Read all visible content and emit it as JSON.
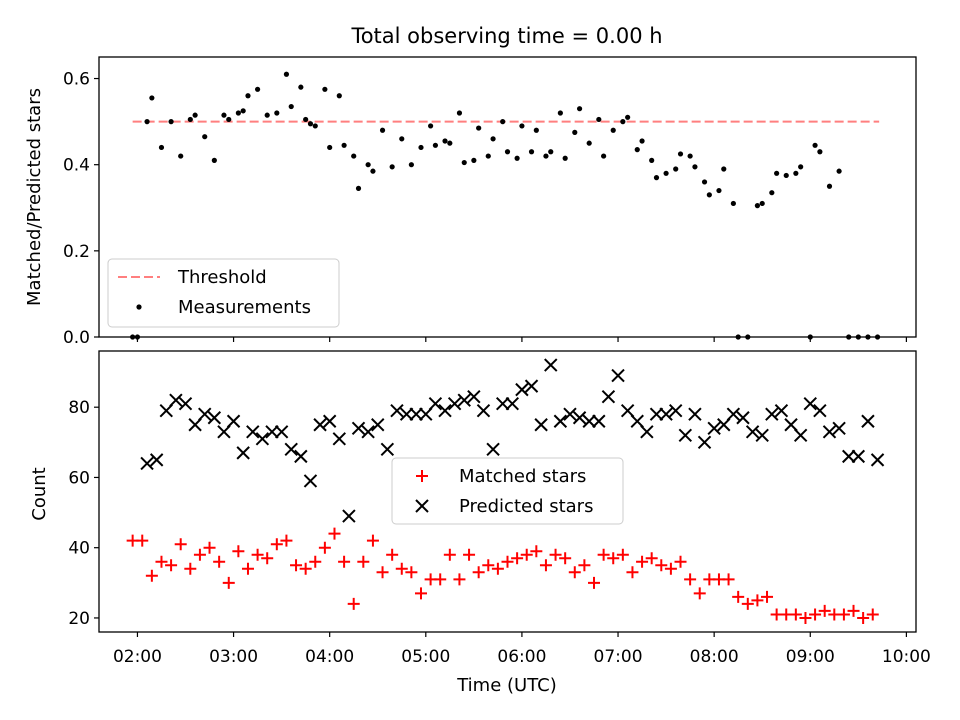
{
  "chart_data": [
    {
      "type": "scatter",
      "title": "Total observing time = 0.00 h",
      "xlabel": "",
      "ylabel": "Matched/Predicted stars",
      "xlim": [
        "01:36",
        "10:06"
      ],
      "ylim": [
        0,
        0.65
      ],
      "yticks": [
        0.0,
        0.2,
        0.4,
        0.6
      ],
      "ytick_labels": [
        "0.0",
        "0.2",
        "0.4",
        "0.6"
      ],
      "x_tick_labels_visible": false,
      "grid": false,
      "legend_position": "lower-left",
      "series": [
        {
          "name": "Threshold",
          "kind": "line",
          "style": "dashed",
          "color": "#ff7f7f",
          "x": [
            "01:57",
            "09:43"
          ],
          "y": [
            0.5,
            0.5
          ]
        },
        {
          "name": "Measurements",
          "kind": "scatter",
          "marker": "dot",
          "color": "#000000",
          "x": [
            "01:57",
            "02:00",
            "02:06",
            "02:09",
            "02:15",
            "02:21",
            "02:27",
            "02:33",
            "02:36",
            "02:42",
            "02:48",
            "02:54",
            "02:57",
            "03:03",
            "03:06",
            "03:09",
            "03:15",
            "03:21",
            "03:27",
            "03:33",
            "03:36",
            "03:42",
            "03:45",
            "03:48",
            "03:51",
            "03:57",
            "04:00",
            "04:06",
            "04:09",
            "04:15",
            "04:18",
            "04:24",
            "04:27",
            "04:33",
            "04:39",
            "04:45",
            "04:51",
            "04:57",
            "05:03",
            "05:06",
            "05:12",
            "05:15",
            "05:21",
            "05:24",
            "05:30",
            "05:33",
            "05:39",
            "05:42",
            "05:48",
            "05:51",
            "05:57",
            "06:00",
            "06:06",
            "06:09",
            "06:15",
            "06:18",
            "06:24",
            "06:27",
            "06:33",
            "06:36",
            "06:42",
            "06:48",
            "06:51",
            "06:57",
            "07:03",
            "07:06",
            "07:12",
            "07:15",
            "07:21",
            "07:24",
            "07:30",
            "07:36",
            "07:39",
            "07:45",
            "07:48",
            "07:54",
            "07:57",
            "08:03",
            "08:06",
            "08:12",
            "08:15",
            "08:21",
            "08:27",
            "08:30",
            "08:36",
            "08:39",
            "08:45",
            "08:51",
            "08:54",
            "09:00",
            "09:03",
            "09:06",
            "09:12",
            "09:18",
            "09:24",
            "09:30",
            "09:36",
            "09:42"
          ],
          "y": [
            0.0,
            0.0,
            0.5,
            0.555,
            0.44,
            0.5,
            0.42,
            0.505,
            0.515,
            0.465,
            0.41,
            0.515,
            0.505,
            0.52,
            0.525,
            0.56,
            0.575,
            0.515,
            0.52,
            0.61,
            0.535,
            0.58,
            0.505,
            0.495,
            0.49,
            0.575,
            0.44,
            0.56,
            0.445,
            0.42,
            0.345,
            0.4,
            0.385,
            0.48,
            0.395,
            0.46,
            0.4,
            0.44,
            0.49,
            0.445,
            0.455,
            0.45,
            0.52,
            0.405,
            0.41,
            0.485,
            0.42,
            0.46,
            0.5,
            0.43,
            0.415,
            0.49,
            0.43,
            0.48,
            0.42,
            0.43,
            0.52,
            0.415,
            0.475,
            0.53,
            0.45,
            0.505,
            0.42,
            0.48,
            0.5,
            0.51,
            0.435,
            0.455,
            0.41,
            0.37,
            0.38,
            0.39,
            0.425,
            0.42,
            0.395,
            0.36,
            0.33,
            0.34,
            0.39,
            0.31,
            0.0,
            0.0,
            0.305,
            0.31,
            0.335,
            0.38,
            0.375,
            0.38,
            0.395,
            0.0,
            0.445,
            0.43,
            0.35,
            0.385,
            0.0,
            0.0,
            0.0,
            0.0
          ]
        }
      ]
    },
    {
      "type": "scatter",
      "title": "",
      "xlabel": "Time (UTC)",
      "ylabel": "Count",
      "xlim": [
        "01:36",
        "10:06"
      ],
      "ylim": [
        16,
        96
      ],
      "yticks": [
        20,
        40,
        60,
        80
      ],
      "ytick_labels": [
        "20",
        "40",
        "60",
        "80"
      ],
      "xtick_labels": [
        "02:00",
        "03:00",
        "04:00",
        "05:00",
        "06:00",
        "07:00",
        "08:00",
        "09:00",
        "10:00"
      ],
      "grid": false,
      "legend_position": "center",
      "series": [
        {
          "name": "Matched stars",
          "kind": "scatter",
          "marker": "plus",
          "color": "#ff0000",
          "x": [
            "01:57",
            "02:03",
            "02:09",
            "02:15",
            "02:21",
            "02:27",
            "02:33",
            "02:39",
            "02:45",
            "02:51",
            "02:57",
            "03:03",
            "03:09",
            "03:15",
            "03:21",
            "03:27",
            "03:33",
            "03:39",
            "03:45",
            "03:51",
            "03:57",
            "04:03",
            "04:09",
            "04:15",
            "04:21",
            "04:27",
            "04:33",
            "04:39",
            "04:45",
            "04:51",
            "04:57",
            "05:03",
            "05:09",
            "05:15",
            "05:21",
            "05:27",
            "05:33",
            "05:39",
            "05:45",
            "05:51",
            "05:57",
            "06:03",
            "06:09",
            "06:15",
            "06:21",
            "06:27",
            "06:33",
            "06:39",
            "06:45",
            "06:51",
            "06:57",
            "07:03",
            "07:09",
            "07:15",
            "07:21",
            "07:27",
            "07:33",
            "07:39",
            "07:45",
            "07:51",
            "07:57",
            "08:03",
            "08:09",
            "08:15",
            "08:21",
            "08:27",
            "08:33",
            "08:39",
            "08:45",
            "08:51",
            "08:57",
            "09:03",
            "09:09",
            "09:15",
            "09:21",
            "09:27",
            "09:33",
            "09:39"
          ],
          "y": [
            42,
            42,
            32,
            36,
            35,
            41,
            34,
            38,
            40,
            36,
            30,
            39,
            34,
            38,
            37,
            41,
            42,
            35,
            34,
            36,
            40,
            44,
            36,
            24,
            36,
            42,
            33,
            38,
            34,
            33,
            27,
            31,
            31,
            38,
            31,
            38,
            33,
            35,
            34,
            36,
            37,
            38,
            39,
            35,
            38,
            37,
            33,
            35,
            30,
            38,
            37,
            38,
            33,
            36,
            37,
            35,
            34,
            36,
            31,
            27,
            31,
            31,
            31,
            26,
            24,
            25,
            26,
            21,
            21,
            21,
            20,
            21,
            22,
            21,
            21,
            22,
            20,
            21
          ]
        },
        {
          "name": "Predicted stars",
          "kind": "scatter",
          "marker": "x",
          "color": "#000000",
          "x": [
            "02:06",
            "02:12",
            "02:18",
            "02:24",
            "02:30",
            "02:36",
            "02:42",
            "02:48",
            "02:54",
            "03:00",
            "03:06",
            "03:12",
            "03:18",
            "03:24",
            "03:30",
            "03:36",
            "03:42",
            "03:48",
            "03:54",
            "04:00",
            "04:06",
            "04:12",
            "04:18",
            "04:24",
            "04:30",
            "04:36",
            "04:42",
            "04:48",
            "04:54",
            "05:00",
            "05:06",
            "05:12",
            "05:18",
            "05:24",
            "05:30",
            "05:36",
            "05:42",
            "05:48",
            "05:54",
            "06:00",
            "06:06",
            "06:12",
            "06:18",
            "06:24",
            "06:30",
            "06:36",
            "06:42",
            "06:48",
            "06:54",
            "07:00",
            "07:06",
            "07:12",
            "07:18",
            "07:24",
            "07:30",
            "07:36",
            "07:42",
            "07:48",
            "07:54",
            "08:00",
            "08:06",
            "08:12",
            "08:18",
            "08:24",
            "08:30",
            "08:36",
            "08:42",
            "08:48",
            "08:54",
            "09:00",
            "09:06",
            "09:12",
            "09:18",
            "09:24",
            "09:30",
            "09:36",
            "09:42"
          ],
          "y": [
            64,
            65,
            79,
            82,
            81,
            75,
            78,
            77,
            73,
            76,
            67,
            73,
            71,
            73,
            73,
            68,
            66,
            59,
            75,
            76,
            71,
            49,
            74,
            73,
            75,
            68,
            79,
            78,
            78,
            78,
            81,
            79,
            81,
            82,
            83,
            79,
            68,
            81,
            81,
            85,
            86,
            75,
            92,
            76,
            78,
            77,
            76,
            76,
            83,
            89,
            79,
            76,
            73,
            78,
            78,
            79,
            72,
            78,
            70,
            74,
            75,
            78,
            77,
            73,
            72,
            78,
            79,
            75,
            72,
            81,
            79,
            73,
            74,
            66,
            66,
            76,
            65
          ]
        }
      ]
    }
  ]
}
